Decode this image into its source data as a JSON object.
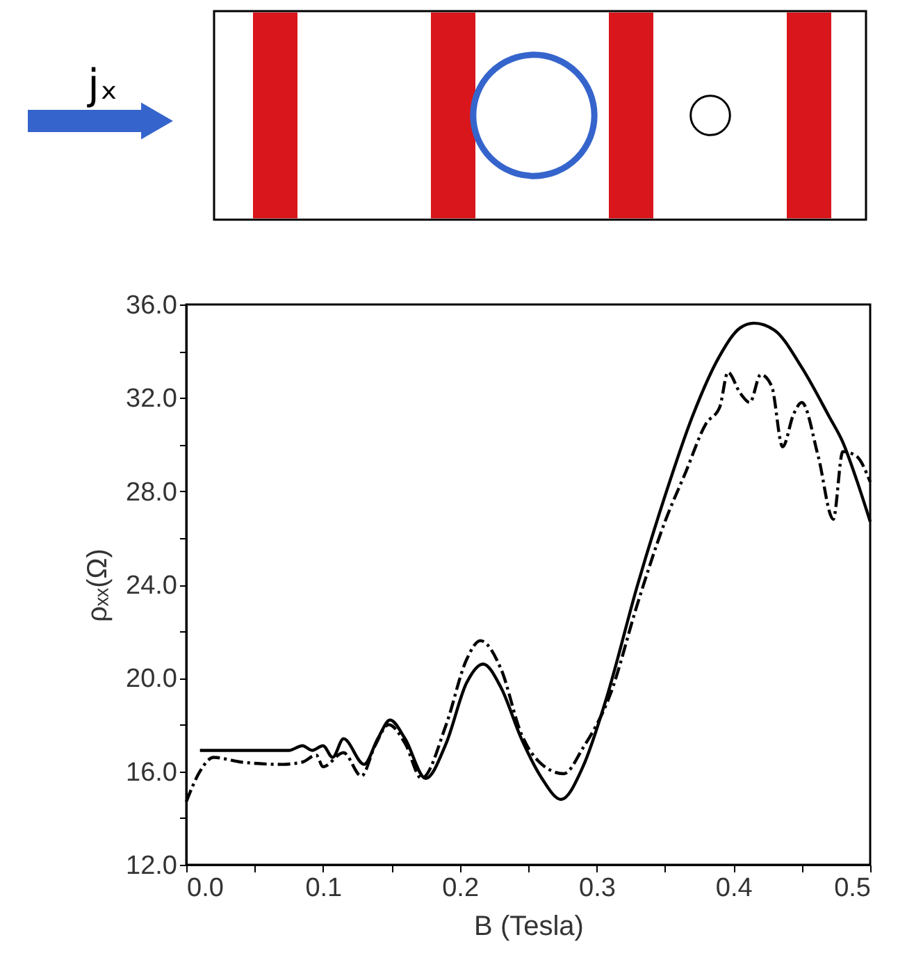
{
  "chart_data": {
    "type": "line",
    "xlabel": "B (Tesla)",
    "ylabel": "ρₓₓ(Ω)",
    "annotations": [
      "jₓ"
    ],
    "xlim": [
      0,
      0.5
    ],
    "ylim": [
      12,
      36
    ],
    "xticks": [
      {
        "value": 0,
        "label": "0.0"
      },
      {
        "value": 0.05,
        "label": null
      },
      {
        "value": 0.1,
        "label": "0.1"
      },
      {
        "value": 0.15,
        "label": null
      },
      {
        "value": 0.2,
        "label": "0.2"
      },
      {
        "value": 0.25,
        "label": null
      },
      {
        "value": 0.3,
        "label": "0.3"
      },
      {
        "value": 0.35,
        "label": null
      },
      {
        "value": 0.4,
        "label": "0.4"
      },
      {
        "value": 0.45,
        "label": null
      },
      {
        "value": 0.5,
        "label": "0.5"
      }
    ],
    "yticks": [
      {
        "value": 12,
        "label": "12.0"
      },
      {
        "value": 14,
        "label": null
      },
      {
        "value": 16,
        "label": "16.0"
      },
      {
        "value": 18,
        "label": null
      },
      {
        "value": 20,
        "label": "20.0"
      },
      {
        "value": 22,
        "label": null
      },
      {
        "value": 24,
        "label": "24.0"
      },
      {
        "value": 26,
        "label": null
      },
      {
        "value": 28,
        "label": "28.0"
      },
      {
        "value": 30,
        "label": null
      },
      {
        "value": 32,
        "label": "32.0"
      },
      {
        "value": 34,
        "label": null
      },
      {
        "value": 36,
        "label": "36.0"
      }
    ],
    "grid": false,
    "legend": false,
    "marker": "none",
    "series": [
      {
        "color": "#000000",
        "line_style": "solid",
        "x": [
          0.01,
          0.075,
          0.085,
          0.092,
          0.1,
          0.107,
          0.115,
          0.13,
          0.14,
          0.149,
          0.16,
          0.175,
          0.19,
          0.205,
          0.217,
          0.23,
          0.245,
          0.26,
          0.274,
          0.29,
          0.307,
          0.33,
          0.35,
          0.37,
          0.39,
          0.405,
          0.415,
          0.43,
          0.45,
          0.47,
          0.48,
          0.49,
          0.5
        ],
        "values": [
          16.9,
          16.9,
          17.1,
          16.9,
          17.1,
          16.6,
          17.4,
          16.3,
          17.4,
          18.2,
          17.4,
          15.7,
          17.2,
          19.8,
          20.6,
          19.6,
          17.4,
          15.7,
          14.8,
          16.2,
          19.1,
          24.0,
          27.8,
          31.2,
          33.8,
          35.0,
          35.2,
          34.9,
          33.3,
          31.2,
          30.1,
          28.5,
          26.7
        ]
      },
      {
        "color": "#000000",
        "line_style": "dashed",
        "x": [
          0,
          0.01,
          0.02,
          0.04,
          0.07,
          0.085,
          0.095,
          0.1,
          0.115,
          0.128,
          0.138,
          0.148,
          0.16,
          0.172,
          0.19,
          0.205,
          0.215,
          0.23,
          0.245,
          0.26,
          0.276,
          0.29,
          0.31,
          0.33,
          0.35,
          0.365,
          0.38,
          0.39,
          0.396,
          0.405,
          0.412,
          0.42,
          0.428,
          0.436,
          0.444,
          0.45,
          0.462,
          0.473,
          0.48,
          0.49,
          0.5
        ],
        "values": [
          14.7,
          16.0,
          16.6,
          16.4,
          16.3,
          16.4,
          16.7,
          16.2,
          16.8,
          15.8,
          17.1,
          18.0,
          17.2,
          15.7,
          18.0,
          20.8,
          21.6,
          20.4,
          17.6,
          16.3,
          15.9,
          17.0,
          19.3,
          23.2,
          26.7,
          28.8,
          30.9,
          31.6,
          33.1,
          32.2,
          31.8,
          33.0,
          32.5,
          29.9,
          31.3,
          31.8,
          29.5,
          26.8,
          29.7,
          29.5,
          28.4
        ]
      }
    ]
  }
}
